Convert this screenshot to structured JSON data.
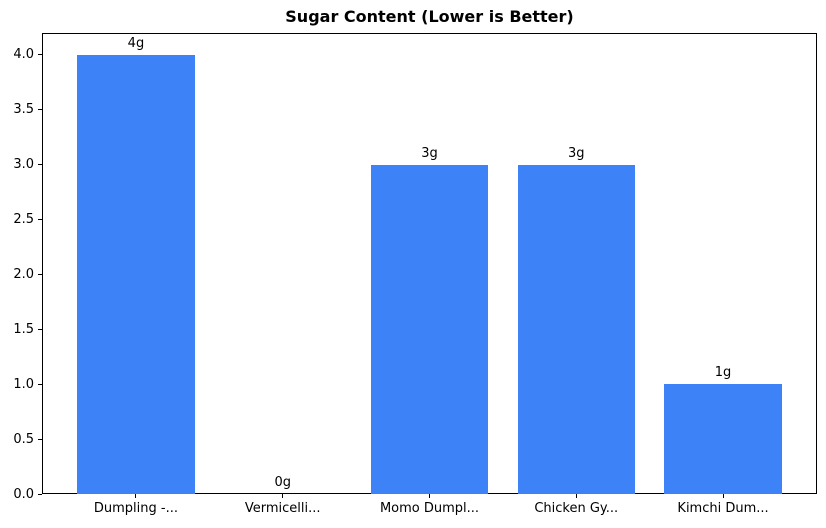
{
  "chart_data": {
    "type": "bar",
    "title": "Sugar Content (Lower is Better)",
    "categories": [
      "Dumpling -...",
      "Vermicelli...",
      "Momo Dumpl...",
      "Chicken Gy...",
      "Kimchi Dum..."
    ],
    "values": [
      4,
      0,
      3,
      3,
      1
    ],
    "bar_labels": [
      "4g",
      "0g",
      "3g",
      "3g",
      "1g"
    ],
    "xlabel": "",
    "ylabel": "",
    "ylim": [
      0,
      4.2
    ],
    "yticks": [
      "0.0",
      "0.5",
      "1.0",
      "1.5",
      "2.0",
      "2.5",
      "3.0",
      "3.5",
      "4.0"
    ],
    "bar_color": "#3d82f6",
    "spine_color": "#000000",
    "grid": false,
    "legend_position": "none"
  }
}
